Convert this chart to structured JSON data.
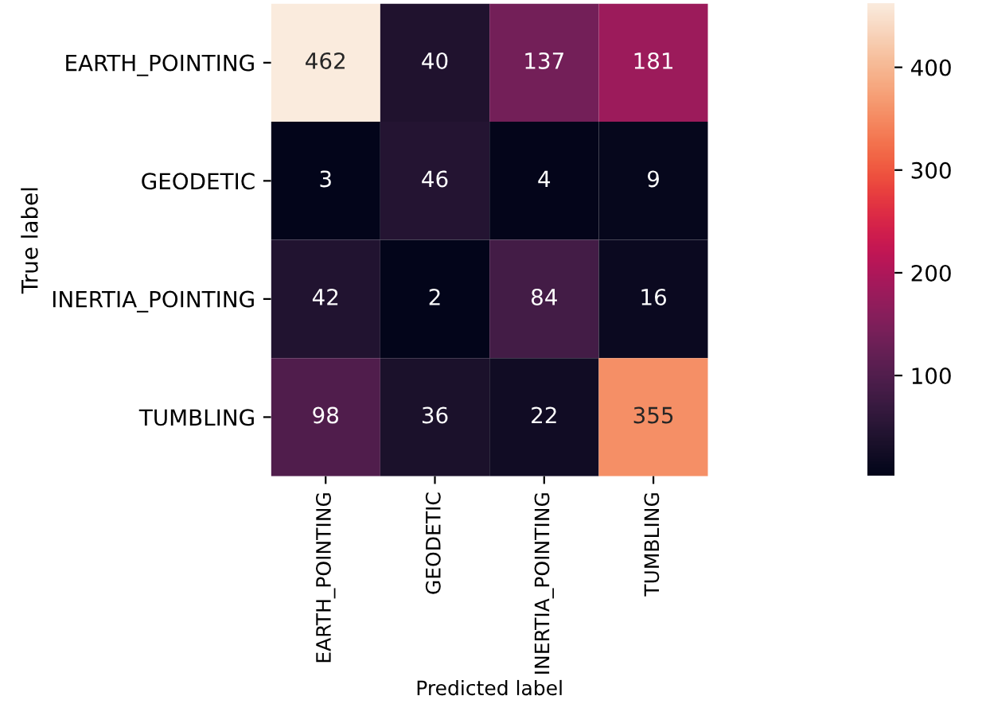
{
  "chart_data": {
    "type": "heatmap",
    "xlabel": "Predicted label",
    "ylabel": "True label",
    "categories": [
      "EARTH_POINTING",
      "GEODETIC",
      "INERTIA_POINTING",
      "TUMBLING"
    ],
    "y_categories": [
      "EARTH_POINTING",
      "GEODETIC",
      "INERTIA_POINTING",
      "TUMBLING"
    ],
    "cells": [
      [
        462,
        40,
        137,
        181
      ],
      [
        3,
        46,
        4,
        9
      ],
      [
        42,
        2,
        84,
        16
      ],
      [
        98,
        36,
        22,
        355
      ]
    ],
    "clim": [
      2,
      462
    ],
    "cticks": [
      100,
      200,
      300,
      400
    ],
    "data_labels": true
  }
}
